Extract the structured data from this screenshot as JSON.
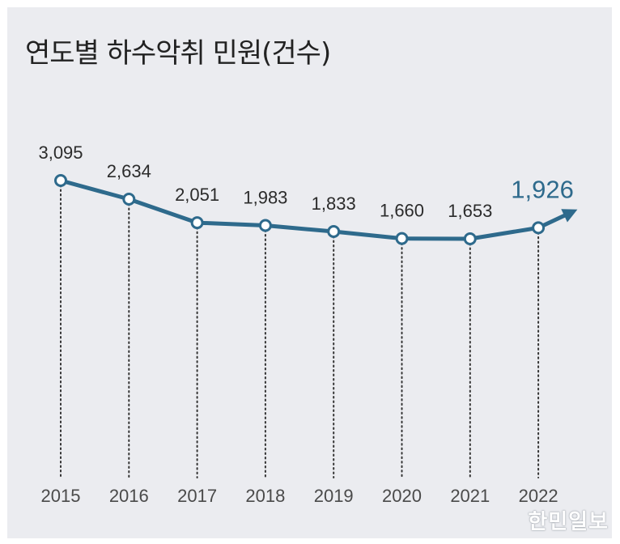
{
  "title": "연도별 하수악취 민원(건수)",
  "logo": "한민일보",
  "colors": {
    "line": "#2e6a8c",
    "highlight": "#2e6a8c",
    "background": "#ebecf0"
  },
  "chart_data": {
    "type": "line",
    "title": "연도별 하수악취 민원(건수)",
    "xlabel": "",
    "ylabel": "",
    "categories": [
      "2015",
      "2016",
      "2017",
      "2018",
      "2019",
      "2020",
      "2021",
      "2022"
    ],
    "values": [
      3095,
      2634,
      2051,
      1983,
      1833,
      1660,
      1653,
      1926
    ],
    "value_labels": [
      "3,095",
      "2,634",
      "2,051",
      "1,983",
      "1,833",
      "1,660",
      "1,653",
      "1,926"
    ],
    "highlight_index": 7,
    "grid": false,
    "legend": "none"
  }
}
